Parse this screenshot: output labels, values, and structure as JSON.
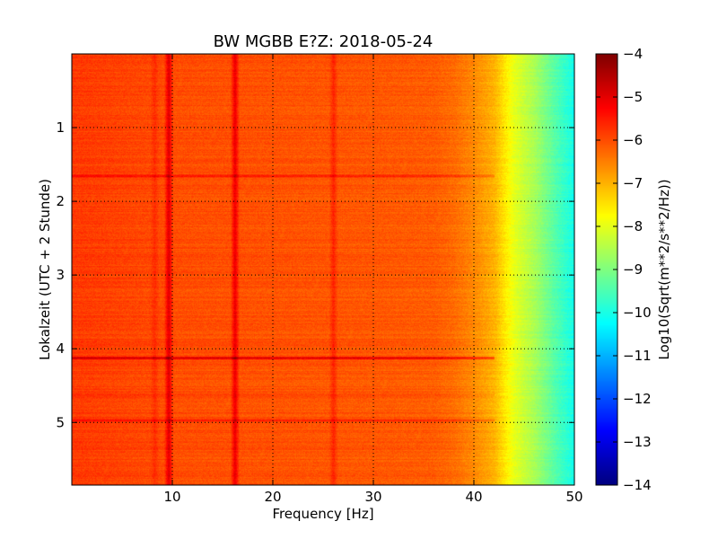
{
  "chart_data": {
    "type": "heatmap",
    "title": "BW MGBB E?Z: 2018-05-24",
    "xlabel": "Frequency [Hz]",
    "ylabel": "Lokalzeit (UTC + 2 Stunde)",
    "xlim": [
      0.0,
      50.0
    ],
    "ylim": [
      5.85,
      0.0
    ],
    "y_inverted": true,
    "x_ticks": [
      10,
      20,
      30,
      40,
      50
    ],
    "x_tick_labels": [
      "10",
      "20",
      "30",
      "40",
      "50"
    ],
    "y_ticks": [
      1,
      2,
      3,
      4,
      5
    ],
    "y_tick_labels": [
      "1",
      "2",
      "3",
      "4",
      "5"
    ],
    "grid": "dotted",
    "colorbar": {
      "label": "Log10(Sqrt(m**2/s**2/Hz))",
      "min": -14,
      "max": -4,
      "ticks": [
        -4,
        -5,
        -6,
        -7,
        -8,
        -9,
        -10,
        -11,
        -12,
        -13,
        -14
      ],
      "tick_labels": [
        "−4",
        "−5",
        "−6",
        "−7",
        "−8",
        "−9",
        "−10",
        "−11",
        "−12",
        "−13",
        "−14"
      ],
      "colormap": "jet"
    },
    "baseline_profile": {
      "frequency_hz": [
        0,
        5,
        10,
        20,
        30,
        36,
        38,
        40,
        42,
        43,
        44,
        46,
        48,
        50
      ],
      "log10_amplitude": [
        -5.8,
        -5.9,
        -6.0,
        -6.05,
        -6.1,
        -6.15,
        -6.3,
        -6.6,
        -7.0,
        -7.5,
        -8.0,
        -8.6,
        -9.4,
        -10.1
      ]
    },
    "vertical_peaks_hz": [
      9.6,
      16.2,
      26.0,
      8.2
    ],
    "vertical_peak_strength": [
      1.1,
      1.0,
      0.5,
      0.3
    ],
    "horizontal_events_hours": [
      1.65,
      4.12,
      4.97,
      4.62
    ],
    "horizontal_event_strength": [
      0.7,
      1.2,
      0.6,
      0.3
    ]
  }
}
